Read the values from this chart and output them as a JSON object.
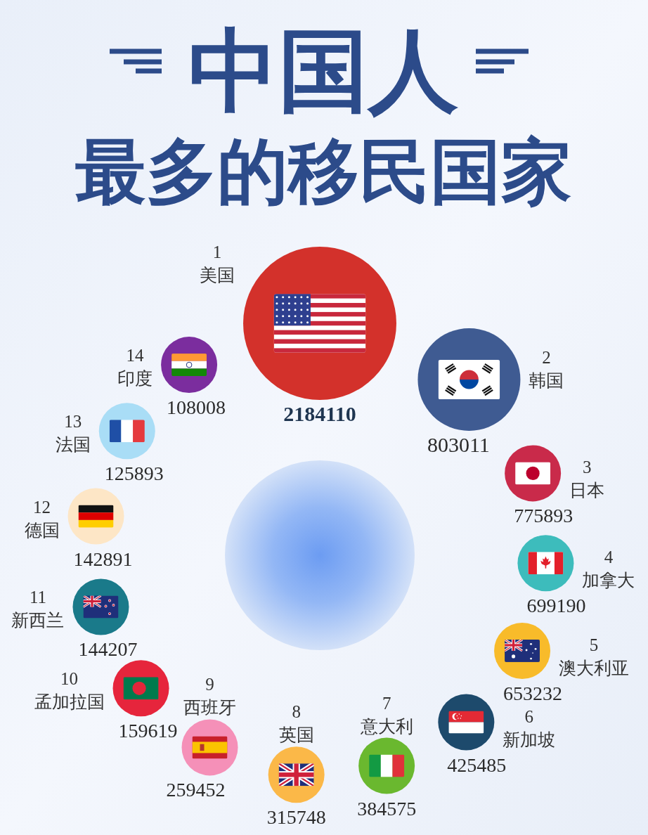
{
  "chart_data": {
    "type": "other",
    "title": "中国人",
    "subtitle": "最多的移民国家",
    "categories": [
      "美国",
      "韩国",
      "日本",
      "加拿大",
      "澳大利亚",
      "新加坡",
      "意大利",
      "英国",
      "西班牙",
      "孟加拉国",
      "新西兰",
      "德国",
      "法国",
      "印度"
    ],
    "values": [
      2184110,
      803011,
      775893,
      699190,
      653232,
      425485,
      384575,
      315748,
      259452,
      159619,
      144207,
      142891,
      125893,
      108008
    ],
    "colors": [
      "#d3312b",
      "#3f5b92",
      "#c92a4a",
      "#3dbcbc",
      "#f8bb2a",
      "#1d4a6c",
      "#6ab82f",
      "#fbb848",
      "#f590b8",
      "#e6253c",
      "#1a7a8a",
      "#fde6c6",
      "#a9ddf6",
      "#7b2d9e"
    ],
    "data_labels": true,
    "annotations": [
      {
        "text": "1",
        "x": "美国"
      },
      {
        "text": "2",
        "x": "韩国"
      },
      {
        "text": "3",
        "x": "日本"
      },
      {
        "text": "4",
        "x": "加拿大"
      },
      {
        "text": "5",
        "x": "澳大利亚"
      },
      {
        "text": "6",
        "x": "新加坡"
      },
      {
        "text": "7",
        "x": "意大利"
      },
      {
        "text": "8",
        "x": "英国"
      },
      {
        "text": "9",
        "x": "西班牙"
      },
      {
        "text": "10",
        "x": "孟加拉国"
      },
      {
        "text": "11",
        "x": "新西兰"
      },
      {
        "text": "12",
        "x": "德国"
      },
      {
        "text": "13",
        "x": "法国"
      },
      {
        "text": "14",
        "x": "印度"
      }
    ]
  }
}
